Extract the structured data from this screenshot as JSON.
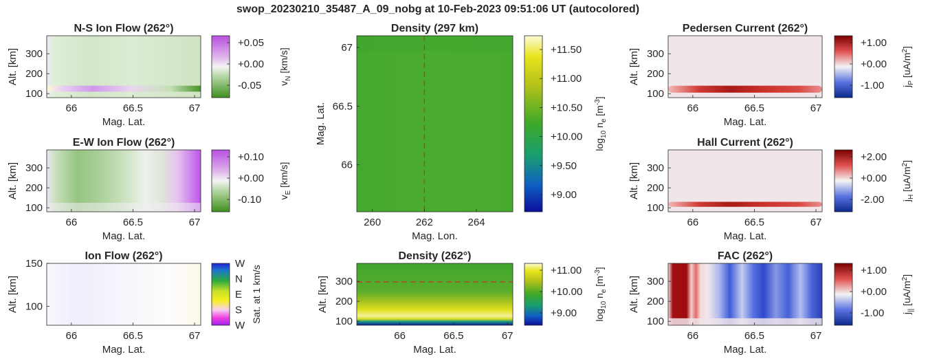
{
  "figure_title": "swop_20230210_35487_A_09_nobg at 10-Feb-2023 09:51:06 UT (autocolored)",
  "chart_data": [
    {
      "id": "ns_flow",
      "type": "heatmap",
      "title": "N-S Ion Flow (262°)",
      "xlabel": "Mag. Lat.",
      "ylabel": "Alt. [km]",
      "xticks": [
        "66",
        "66.5",
        "67"
      ],
      "yticks": [
        "100",
        "200",
        "300"
      ],
      "xlim": [
        65.8,
        67.05
      ],
      "ylim": [
        80,
        390
      ],
      "colormap": "green-white-purple",
      "colorbar": {
        "label": "v_N [km/s]",
        "ticks": [
          "+0.05",
          "+0.00",
          "-0.05"
        ]
      }
    },
    {
      "id": "density_map",
      "type": "heatmap",
      "title": "Density (297 km)",
      "xlabel": "Mag. Lon.",
      "ylabel": "Mag. Lat.",
      "xticks": [
        "260",
        "262",
        "264"
      ],
      "yticks": [
        "66",
        "66.5",
        "67"
      ],
      "xlim": [
        259.4,
        265.4
      ],
      "ylim": [
        65.6,
        67.1
      ],
      "marker_line": {
        "orientation": "vertical",
        "value": 262,
        "style": "dashed",
        "color": "#c0392b"
      },
      "colormap": "parula",
      "colorbar": {
        "label": "log10 n_e [m^-3]",
        "ticks": [
          "+11.50",
          "+11.00",
          "+10.50",
          "+10.00",
          "+9.50",
          "+9.00"
        ]
      }
    },
    {
      "id": "pedersen",
      "type": "heatmap",
      "title": "Pedersen Current (262°)",
      "xlabel": "Mag. Lat.",
      "ylabel": "Alt. [km]",
      "xticks": [
        "66",
        "66.5",
        "67"
      ],
      "yticks": [
        "100",
        "200",
        "300"
      ],
      "xlim": [
        65.8,
        67.05
      ],
      "ylim": [
        80,
        390
      ],
      "colormap": "blue-white-red",
      "colorbar": {
        "label": "j_P [uA/m^2]",
        "ticks": [
          "+1.00",
          "+0.00",
          "-1.00"
        ]
      }
    },
    {
      "id": "ew_flow",
      "type": "heatmap",
      "title": "E-W Ion Flow (262°)",
      "xlabel": "Mag. Lat.",
      "ylabel": "Alt. [km]",
      "xticks": [
        "66",
        "66.5",
        "67"
      ],
      "yticks": [
        "100",
        "200",
        "300"
      ],
      "xlim": [
        65.8,
        67.05
      ],
      "ylim": [
        80,
        390
      ],
      "colormap": "green-white-purple",
      "colorbar": {
        "label": "v_E [km/s]",
        "ticks": [
          "+0.10",
          "+0.00",
          "-0.10"
        ]
      }
    },
    {
      "id": "hall",
      "type": "heatmap",
      "title": "Hall Current (262°)",
      "xlabel": "Mag. Lat.",
      "ylabel": "Alt. [km]",
      "xticks": [
        "66",
        "66.5",
        "67"
      ],
      "yticks": [
        "100",
        "200",
        "300"
      ],
      "xlim": [
        65.8,
        67.05
      ],
      "ylim": [
        80,
        390
      ],
      "colormap": "blue-white-red",
      "colorbar": {
        "label": "j_H [uA/m^2]",
        "ticks": [
          "+2.00",
          "+0.00",
          "-2.00"
        ]
      }
    },
    {
      "id": "ion_flow",
      "type": "heatmap",
      "title": "Ion Flow (262°)",
      "xlabel": "Mag. Lat.",
      "ylabel": "Alt. [km]",
      "xticks": [
        "66",
        "66.5",
        "67"
      ],
      "yticks": [
        "100",
        "150"
      ],
      "xlim": [
        65.8,
        67.05
      ],
      "ylim": [
        78,
        150
      ],
      "colormap": "direction-wheel",
      "colorbar": {
        "label": "Sat. at 1 km/s",
        "ticks": [
          "W",
          "N",
          "E",
          "S",
          "W"
        ]
      }
    },
    {
      "id": "density_alt",
      "type": "heatmap",
      "title": "Density (262°)",
      "xlabel": "Mag. Lat.",
      "ylabel": "Alt. [km]",
      "xticks": [
        "66",
        "66.5",
        "67"
      ],
      "yticks": [
        "100",
        "200",
        "300"
      ],
      "xlim": [
        65.6,
        67.05
      ],
      "ylim": [
        80,
        390
      ],
      "marker_line": {
        "orientation": "horizontal",
        "value": 297,
        "style": "dashed",
        "color": "#c0392b"
      },
      "colormap": "parula",
      "colorbar": {
        "label": "log10 n_e [m^-3]",
        "ticks": [
          "+11.00",
          "+10.00",
          "+9.00"
        ]
      }
    },
    {
      "id": "fac",
      "type": "heatmap",
      "title": "FAC (262°)",
      "xlabel": "Mag. Lat.",
      "ylabel": "Alt. [km]",
      "xticks": [
        "66",
        "66.5",
        "67"
      ],
      "yticks": [
        "100",
        "200",
        "300"
      ],
      "xlim": [
        65.8,
        67.05
      ],
      "ylim": [
        80,
        390
      ],
      "colormap": "blue-white-red",
      "colorbar": {
        "label": "j_|| [uA/m^2]",
        "ticks": [
          "+1.00",
          "+0.00",
          "-1.00"
        ]
      }
    }
  ]
}
